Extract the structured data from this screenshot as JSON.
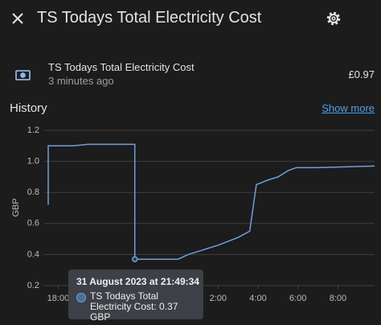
{
  "header": {
    "title": "TS Todays Total Electricity Cost"
  },
  "entity": {
    "name": "TS Todays Total Electricity Cost",
    "updated": "3 minutes ago",
    "state": "£0.97"
  },
  "history": {
    "title": "History",
    "link": "Show more"
  },
  "chart_data": {
    "type": "line",
    "ylabel": "GBP",
    "color": "#6f9fd8",
    "grid": true,
    "x": [
      "17:30",
      "17:30",
      "18:45",
      "19:30",
      "21:50",
      "21:50",
      "0:00",
      "0:30",
      "1:00",
      "2:00",
      "3:00",
      "3:35",
      "3:55",
      "4:30",
      "5:00",
      "5:30",
      "5:55",
      "7:00",
      "9:50"
    ],
    "values": [
      0.72,
      1.1,
      1.1,
      1.11,
      1.11,
      0.37,
      0.37,
      0.4,
      0.42,
      0.46,
      0.51,
      0.55,
      0.85,
      0.88,
      0.9,
      0.94,
      0.96,
      0.96,
      0.97
    ],
    "xlim": [
      "17:30",
      "9:50"
    ],
    "xticks": [
      "18:00",
      "2:00",
      "4:00",
      "6:00",
      "8:00"
    ],
    "ylim": [
      0.2,
      1.2
    ],
    "yticks": [
      0.2,
      0.4,
      0.6,
      0.8,
      {
        "value": 1,
        "label": "1.0"
      },
      1.2
    ],
    "tooltip": {
      "title": "31 August 2023 at 21:49:34",
      "text": "TS Todays Total Electricity Cost: 0.37 GBP"
    }
  }
}
